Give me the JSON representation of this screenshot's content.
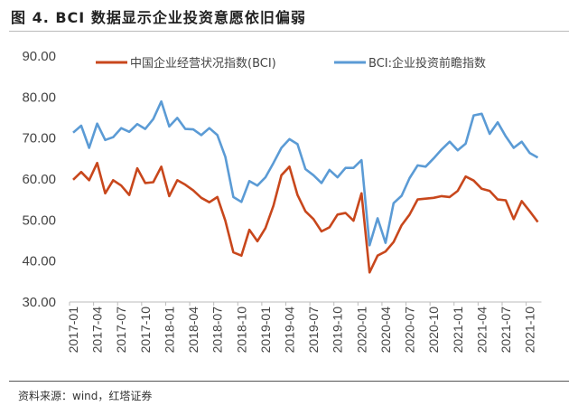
{
  "title": "图 4. BCI 数据显示企业投资意愿依旧偏弱",
  "source": "资料来源：wind，红塔证券",
  "chart_data": {
    "type": "line",
    "title": "",
    "xlabel": "",
    "ylabel": "",
    "ylim": [
      30,
      90
    ],
    "yticks": [
      "30.00",
      "40.00",
      "50.00",
      "60.00",
      "70.00",
      "80.00",
      "90.00"
    ],
    "grid": false,
    "legend": "top",
    "x_start": "2017-01",
    "xtick_labels": [
      "2017-01",
      "2017-04",
      "2017-07",
      "2017-10",
      "2018-01",
      "2018-04",
      "2018-07",
      "2018-10",
      "2019-01",
      "2019-04",
      "2019-07",
      "2019-10",
      "2020-01",
      "2020-04",
      "2020-07",
      "2020-10",
      "2021-01",
      "2021-04",
      "2021-07",
      "2021-10"
    ],
    "series": [
      {
        "name": "中国企业经营状况指数(BCI)",
        "color": "#C8471C",
        "values": [
          59.6,
          61.5,
          59.5,
          63.7,
          56.3,
          59.5,
          58.2,
          55.9,
          62.4,
          58.8,
          59.0,
          62.8,
          55.6,
          59.5,
          58.4,
          57.0,
          55.2,
          54.1,
          55.4,
          49.6,
          41.9,
          41.1,
          47.4,
          44.6,
          47.8,
          53.3,
          60.7,
          62.8,
          55.9,
          51.9,
          50.0,
          47.0,
          48.0,
          51.1,
          51.5,
          49.6,
          56.3,
          37.0,
          41.1,
          42.1,
          44.4,
          48.5,
          51.1,
          54.8,
          55.0,
          55.2,
          55.6,
          55.4,
          56.9,
          60.4,
          59.4,
          57.4,
          56.9,
          54.8,
          54.6,
          50.0,
          54.4,
          51.9,
          49.3
        ]
      },
      {
        "name": "BCI:企业投资前瞻指数",
        "color": "#5B9BD5",
        "values": [
          71.1,
          72.8,
          67.4,
          73.3,
          69.3,
          70.0,
          72.2,
          71.3,
          73.2,
          72.0,
          74.4,
          78.7,
          72.6,
          74.7,
          72.0,
          71.9,
          70.5,
          72.2,
          70.5,
          65.2,
          55.4,
          54.2,
          59.3,
          58.2,
          60.2,
          63.7,
          67.4,
          69.5,
          68.3,
          62.2,
          60.7,
          58.8,
          62.0,
          60.2,
          62.5,
          62.5,
          64.4,
          43.6,
          50.2,
          44.2,
          53.9,
          55.7,
          60.0,
          63.1,
          62.8,
          64.8,
          67.0,
          68.9,
          66.8,
          68.4,
          75.3,
          75.7,
          70.8,
          73.6,
          70.2,
          67.4,
          68.9,
          66.1,
          65.0
        ]
      }
    ]
  }
}
